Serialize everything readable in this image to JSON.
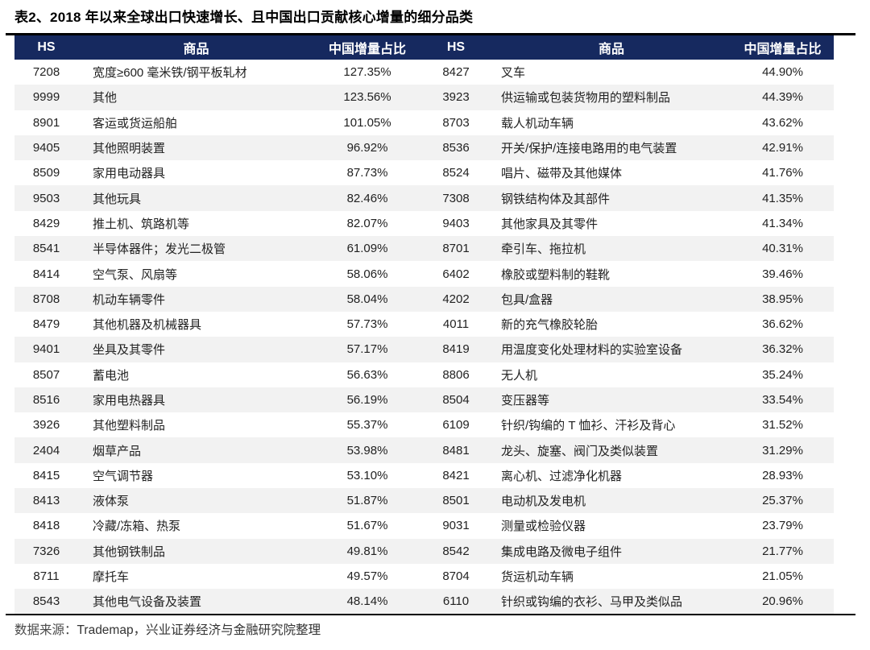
{
  "title": "表2、2018 年以来全球出口快速增长、且中国出口贡献核心增量的细分品类",
  "colors": {
    "header_bg": "#16295f",
    "stripe": "#f2f2f2",
    "rule": "#000000"
  },
  "footer": {
    "source_label": "数据来源：",
    "source_text": "Trademap，兴业证券经济与金融研究院整理"
  },
  "table": {
    "columns": [
      "HS",
      "商品",
      "中国增量占比"
    ],
    "left_rows": [
      {
        "hs": "7208",
        "name": "宽度≥600 毫米铁/钢平板轧材",
        "share": "127.35%"
      },
      {
        "hs": "9999",
        "name": "其他",
        "share": "123.56%"
      },
      {
        "hs": "8901",
        "name": "客运或货运船舶",
        "share": "101.05%"
      },
      {
        "hs": "9405",
        "name": "其他照明装置",
        "share": "96.92%"
      },
      {
        "hs": "8509",
        "name": "家用电动器具",
        "share": "87.73%"
      },
      {
        "hs": "9503",
        "name": "其他玩具",
        "share": "82.46%"
      },
      {
        "hs": "8429",
        "name": "推土机、筑路机等",
        "share": "82.07%"
      },
      {
        "hs": "8541",
        "name": "半导体器件；发光二极管",
        "share": "61.09%"
      },
      {
        "hs": "8414",
        "name": "空气泵、风扇等",
        "share": "58.06%"
      },
      {
        "hs": "8708",
        "name": "机动车辆零件",
        "share": "58.04%"
      },
      {
        "hs": "8479",
        "name": "其他机器及机械器具",
        "share": "57.73%"
      },
      {
        "hs": "9401",
        "name": "坐具及其零件",
        "share": "57.17%"
      },
      {
        "hs": "8507",
        "name": "蓄电池",
        "share": "56.63%"
      },
      {
        "hs": "8516",
        "name": "家用电热器具",
        "share": "56.19%"
      },
      {
        "hs": "3926",
        "name": "其他塑料制品",
        "share": "55.37%"
      },
      {
        "hs": "2404",
        "name": "烟草产品",
        "share": "53.98%"
      },
      {
        "hs": "8415",
        "name": "空气调节器",
        "share": "53.10%"
      },
      {
        "hs": "8413",
        "name": "液体泵",
        "share": "51.87%"
      },
      {
        "hs": "8418",
        "name": "冷藏/冻箱、热泵",
        "share": "51.67%"
      },
      {
        "hs": "7326",
        "name": "其他钢铁制品",
        "share": "49.81%"
      },
      {
        "hs": "8711",
        "name": "摩托车",
        "share": "49.57%"
      },
      {
        "hs": "8543",
        "name": "其他电气设备及装置",
        "share": "48.14%"
      }
    ],
    "right_rows": [
      {
        "hs": "8427",
        "name": "叉车",
        "share": "44.90%"
      },
      {
        "hs": "3923",
        "name": "供运输或包装货物用的塑料制品",
        "share": "44.39%"
      },
      {
        "hs": "8703",
        "name": "载人机动车辆",
        "share": "43.62%"
      },
      {
        "hs": "8536",
        "name": "开关/保护/连接电路用的电气装置",
        "share": "42.91%"
      },
      {
        "hs": "8524",
        "name": "唱片、磁带及其他媒体",
        "share": "41.76%"
      },
      {
        "hs": "7308",
        "name": "钢铁结构体及其部件",
        "share": "41.35%"
      },
      {
        "hs": "9403",
        "name": "其他家具及其零件",
        "share": "41.34%"
      },
      {
        "hs": "8701",
        "name": "牵引车、拖拉机",
        "share": "40.31%"
      },
      {
        "hs": "6402",
        "name": "橡胶或塑料制的鞋靴",
        "share": "39.46%"
      },
      {
        "hs": "4202",
        "name": "包具/盒器",
        "share": "38.95%"
      },
      {
        "hs": "4011",
        "name": "新的充气橡胶轮胎",
        "share": "36.62%"
      },
      {
        "hs": "8419",
        "name": "用温度变化处理材料的实验室设备",
        "share": "36.32%"
      },
      {
        "hs": "8806",
        "name": "无人机",
        "share": "35.24%"
      },
      {
        "hs": "8504",
        "name": "变压器等",
        "share": "33.54%"
      },
      {
        "hs": "6109",
        "name": "针织/钩编的 T 恤衫、汗衫及背心",
        "share": "31.52%"
      },
      {
        "hs": "8481",
        "name": "龙头、旋塞、阀门及类似装置",
        "share": "31.29%"
      },
      {
        "hs": "8421",
        "name": "离心机、过滤净化机器",
        "share": "28.93%"
      },
      {
        "hs": "8501",
        "name": "电动机及发电机",
        "share": "25.37%"
      },
      {
        "hs": "9031",
        "name": "测量或检验仪器",
        "share": "23.79%"
      },
      {
        "hs": "8542",
        "name": "集成电路及微电子组件",
        "share": "21.77%"
      },
      {
        "hs": "8704",
        "name": "货运机动车辆",
        "share": "21.05%"
      },
      {
        "hs": "6110",
        "name": "针织或钩编的衣衫、马甲及类似品",
        "share": "20.96%"
      }
    ]
  }
}
